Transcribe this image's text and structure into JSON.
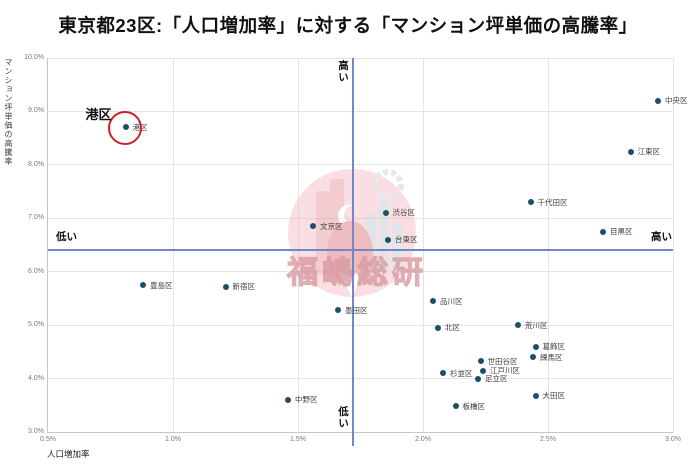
{
  "title": "東京都23区:「人口増加率」に対する「マンション坪単価の高騰率」",
  "watermark": {
    "text": "福嶋総研"
  },
  "colors": {
    "point": "#1b5068",
    "crosshair": "#7486c6",
    "highlight_circle": "#cc2026",
    "gridline": "#e4e4e4",
    "axis_line": "#c6c6c6",
    "tick_text": "#7a7a7a",
    "watermark_pink": "#e9a0a5"
  },
  "chart_data": {
    "type": "scatter",
    "title": "東京都23区:「人口増加率」に対する「マンション坪単価の高騰率」",
    "xlabel": "人口増加率",
    "ylabel": "マンション坪単価の高騰率",
    "xlim": [
      0.5,
      3.0
    ],
    "ylim": [
      3.0,
      10.0
    ],
    "x_tick_values": [
      0.5,
      1.0,
      1.5,
      2.0,
      2.5,
      3.0
    ],
    "x_tick_labels": [
      "0.5%",
      "1.0%",
      "1.5%",
      "2.0%",
      "2.5%",
      "3.0%"
    ],
    "y_tick_values": [
      10.0,
      9.0,
      8.0,
      7.0,
      6.0,
      5.0,
      4.0,
      3.0
    ],
    "y_tick_labels": [
      "10.0%",
      "9.0%",
      "8.0%",
      "7.0%",
      "6.0%",
      "5.0%",
      "4.0%",
      "3.0%"
    ],
    "grid": true,
    "crosshair": {
      "x": 1.72,
      "y": 6.41
    },
    "quadrant_labels": {
      "top": "高い",
      "bottom": "低い",
      "left": "低い",
      "right": "高い"
    },
    "highlight": {
      "ward": "港区",
      "label": "港区"
    },
    "points": [
      {
        "name": "中央区",
        "x": 2.94,
        "y": 9.2
      },
      {
        "name": "港区",
        "x": 0.81,
        "y": 8.7
      },
      {
        "name": "江東区",
        "x": 2.83,
        "y": 8.25
      },
      {
        "name": "千代田区",
        "x": 2.43,
        "y": 7.3
      },
      {
        "name": "渋谷区",
        "x": 1.85,
        "y": 7.1
      },
      {
        "name": "文京区",
        "x": 1.56,
        "y": 6.85
      },
      {
        "name": "目黒区",
        "x": 2.72,
        "y": 6.75
      },
      {
        "name": "台東区",
        "x": 1.86,
        "y": 6.6
      },
      {
        "name": "豊島区",
        "x": 0.88,
        "y": 5.75
      },
      {
        "name": "新宿区",
        "x": 1.21,
        "y": 5.72
      },
      {
        "name": "品川区",
        "x": 2.04,
        "y": 5.45
      },
      {
        "name": "墨田区",
        "x": 1.66,
        "y": 5.28
      },
      {
        "name": "荒川区",
        "x": 2.38,
        "y": 5.0
      },
      {
        "name": "北区",
        "x": 2.06,
        "y": 4.95
      },
      {
        "name": "葛飾区",
        "x": 2.45,
        "y": 4.6
      },
      {
        "name": "練馬区",
        "x": 2.44,
        "y": 4.4
      },
      {
        "name": "世田谷区",
        "x": 2.23,
        "y": 4.32
      },
      {
        "name": "江戸川区",
        "x": 2.24,
        "y": 4.15
      },
      {
        "name": "杉並区",
        "x": 2.08,
        "y": 4.1
      },
      {
        "name": "足立区",
        "x": 2.22,
        "y": 4.0
      },
      {
        "name": "大田区",
        "x": 2.45,
        "y": 3.68
      },
      {
        "name": "板橋区",
        "x": 2.13,
        "y": 3.48
      },
      {
        "name": "中野区",
        "x": 1.46,
        "y": 3.6
      }
    ]
  }
}
